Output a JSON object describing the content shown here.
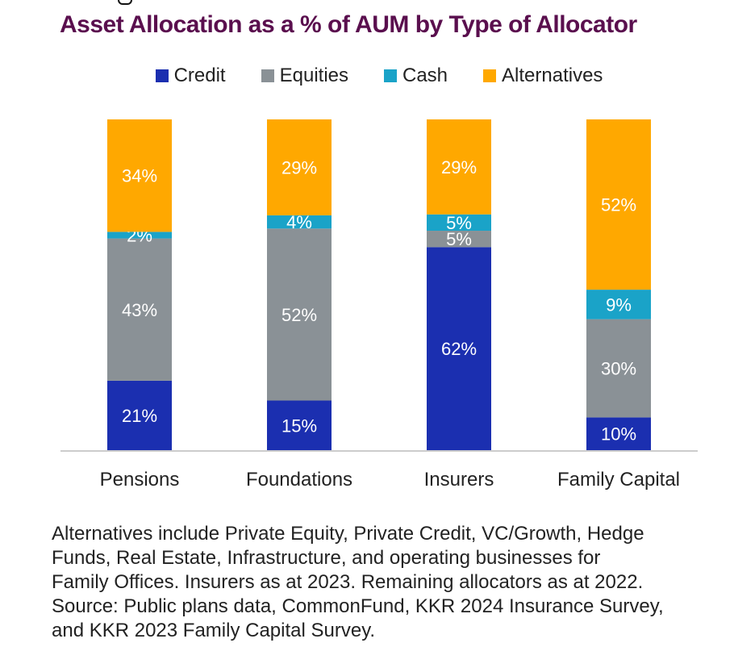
{
  "title": "Asset Allocation as a % of AUM by Type of Allocator",
  "colors": {
    "credit": "#1b2fb0",
    "equities": "#8a9196",
    "cash": "#1aa3c8",
    "alternatives": "#ffa800",
    "title": "#5a0f4e",
    "axis": "#cccccc"
  },
  "legend": [
    {
      "label": "Credit",
      "color": "#1b2fb0"
    },
    {
      "label": "Equities",
      "color": "#8a9196"
    },
    {
      "label": "Cash",
      "color": "#1aa3c8"
    },
    {
      "label": "Alternatives",
      "color": "#ffa800"
    }
  ],
  "chart_data": {
    "type": "bar",
    "stacked": true,
    "normalized_to_100": true,
    "categories": [
      "Pensions",
      "Foundations",
      "Insurers",
      "Family Capital"
    ],
    "series": [
      {
        "name": "Credit",
        "values": [
          21,
          15,
          62,
          10
        ],
        "labels": [
          "21%",
          "15%",
          "62%",
          "10%"
        ]
      },
      {
        "name": "Equities",
        "values": [
          43,
          52,
          5,
          30
        ],
        "labels": [
          "43%",
          "52%",
          "5%",
          "30%"
        ]
      },
      {
        "name": "Cash",
        "values": [
          2,
          4,
          5,
          9
        ],
        "labels": [
          "2%",
          "4%",
          "5%",
          "9%"
        ]
      },
      {
        "name": "Alternatives",
        "values": [
          34,
          29,
          29,
          52
        ],
        "labels": [
          "34%",
          "29%",
          "29%",
          "52%"
        ]
      }
    ],
    "title": "Asset Allocation as a % of AUM by Type of Allocator",
    "xlabel": "",
    "ylabel": "",
    "grid": false,
    "legend_position": "top-center"
  },
  "footnote": [
    "Alternatives include Private Equity, Private Credit, VC/Growth, Hedge",
    "Funds, Real Estate, Infrastructure, and operating businesses for",
    "Family Offices. Insurers as at 2023. Remaining allocators as at 2022.",
    "Source: Public plans data, CommonFund, KKR 2024 Insurance Survey,",
    "and KKR 2023 Family Capital Survey."
  ]
}
